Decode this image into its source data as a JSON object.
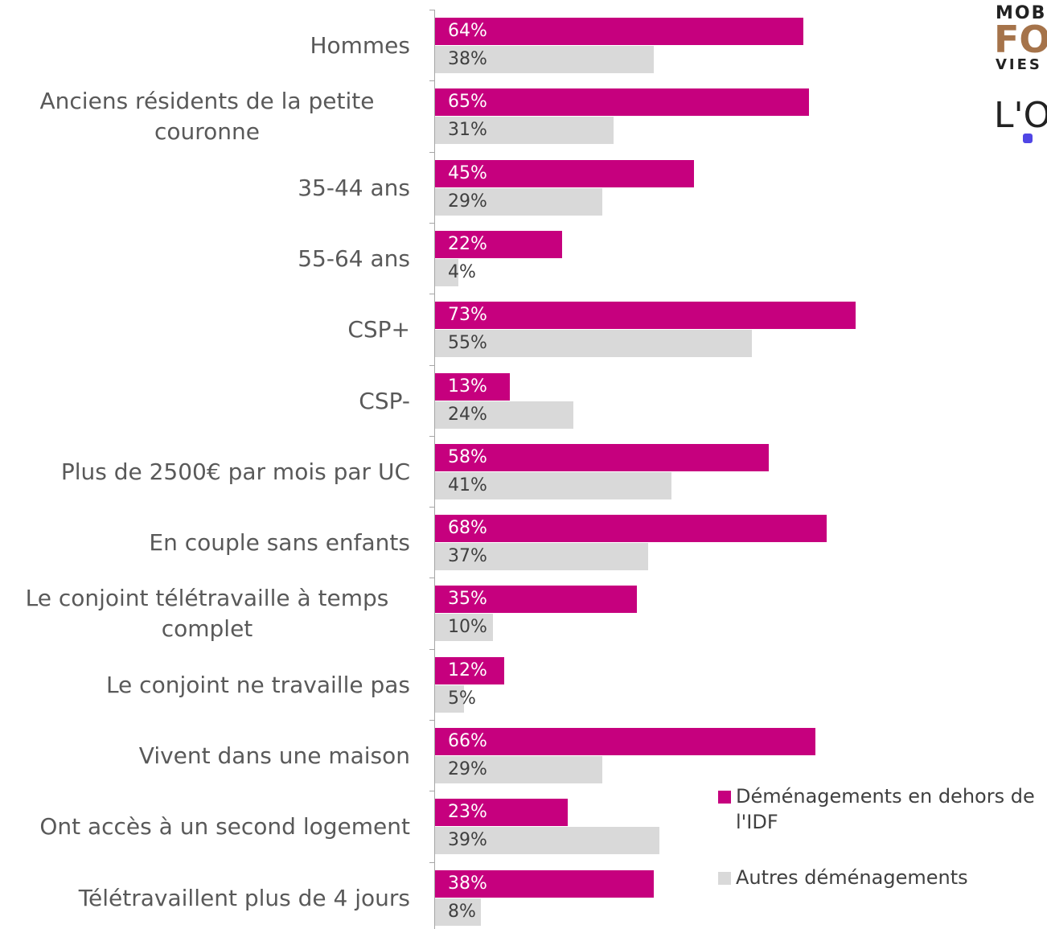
{
  "chart_data": {
    "type": "bar",
    "orientation": "horizontal",
    "categories": [
      "Hommes",
      "Anciens résidents de la petite couronne",
      "35-44 ans",
      "55-64 ans",
      "CSP+",
      "CSP-",
      "Plus de 2500€ par mois par UC",
      "En couple sans enfants",
      "Le conjoint télétravaille à temps complet",
      "Le conjoint ne travaille pas",
      "Vivent dans une maison",
      "Ont accès à un second logement",
      "Télétravaillent plus de 4 jours"
    ],
    "series": [
      {
        "name": "Déménagements en dehors de l'IDF",
        "color": "#c6007e",
        "label_color": "#ffffff",
        "values": [
          64,
          65,
          45,
          22,
          73,
          13,
          58,
          68,
          35,
          12,
          66,
          23,
          38
        ],
        "value_labels": [
          "64%",
          "65%",
          "45%",
          "22%",
          "73%",
          "13%",
          "58%",
          "68%",
          "35%",
          "12%",
          "66%",
          "23%",
          "38%"
        ]
      },
      {
        "name": "Autres déménagements",
        "color": "#d9d9d9",
        "label_color": "#404040",
        "values": [
          38,
          31,
          29,
          4,
          55,
          24,
          41,
          37,
          10,
          5,
          29,
          39,
          8
        ],
        "value_labels": [
          "38%",
          "31%",
          "29%",
          "4%",
          "55%",
          "24%",
          "41%",
          "37%",
          "10%",
          "5%",
          "29%",
          "39%",
          "8%"
        ]
      }
    ],
    "legend": "bottom-right"
  },
  "logo": {
    "line1": "MOBI",
    "line2": "FO",
    "line3": "VIES",
    "mark": "L'O"
  }
}
